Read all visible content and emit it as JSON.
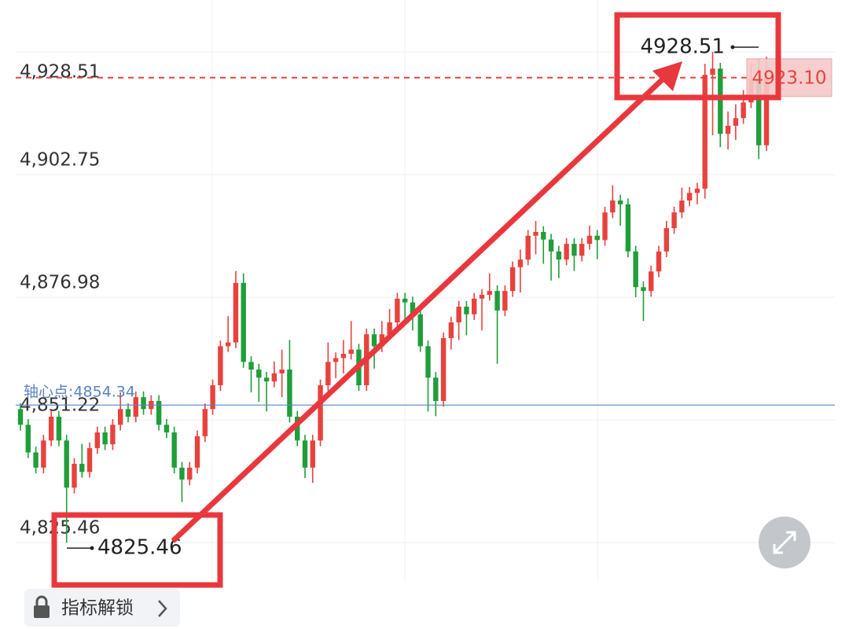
{
  "chart_data": {
    "type": "candlestick",
    "ylim": [
      4817.22,
      4939.41
    ],
    "yticks": [
      {
        "value": 4928.51,
        "label": "4,928.51"
      },
      {
        "value": 4902.75,
        "label": "4,902.75"
      },
      {
        "value": 4876.98,
        "label": "4,876.98"
      },
      {
        "value": 4851.22,
        "label": "4,851.22"
      },
      {
        "value": 4825.46,
        "label": "4,825.46"
      }
    ],
    "grid": true,
    "up_color": "#e8423e",
    "down_color": "#1f9e3a",
    "pivot": {
      "value": 4854.34,
      "label": "轴心点:4854.34",
      "color": "#5b82c2"
    },
    "current_price": {
      "value": 4923.1,
      "label": "4923.10",
      "color": "#e8423e"
    },
    "annotations": [
      {
        "value": 4928.51,
        "label": "4928.51"
      },
      {
        "value": 4825.46,
        "label": "4825.46"
      }
    ],
    "button": "指标解锁",
    "open": [
      4853.5,
      4850.2,
      4844.4,
      4841.2,
      4846.9,
      4851.9,
      4846.9,
      4837.0,
      4842.0,
      4840.3,
      4845.3,
      4848.6,
      4846.1,
      4850.2,
      4853.5,
      4851.9,
      4856.0,
      4853.5,
      4855.2,
      4850.2,
      4848.6,
      4841.2,
      4838.7,
      4841.2,
      4847.8,
      4853.5,
      4858.5,
      4866.7,
      4867.5,
      4880.0,
      4863.4,
      4861.8,
      4860.1,
      4859.3,
      4861.0,
      4861.8,
      4851.9,
      4846.9,
      4841.2,
      4846.9,
      4858.5,
      4863.4,
      4864.2,
      4865.1,
      4866.0,
      4858.5,
      4869.2,
      4866.7,
      4869.2,
      4871.7,
      4876.7,
      4875.9,
      4873.4,
      4866.7,
      4860.1,
      4855.2,
      4868.4,
      4871.7,
      4875.0,
      4873.4,
      4876.7,
      4877.5,
      4878.3,
      4874.2,
      4878.3,
      4883.3,
      4884.9,
      4889.9,
      4890.7,
      4889.1,
      4886.6,
      4884.9,
      4888.2,
      4885.7,
      4888.2,
      4889.9,
      4889.0,
      4894.8,
      4897.3,
      4896.5,
      4886.6,
      4879.1,
      4878.3,
      4882.4,
      4886.6,
      4891.5,
      4894.8,
      4897.3,
      4898.9,
      4899.8,
      4923.7,
      4925.0,
      4911.3,
      4913.0,
      4914.6,
      4917.9,
      4922.9,
      4908.9
    ],
    "high": [
      4854.7,
      4851.4,
      4845.6,
      4848.1,
      4853.1,
      4853.1,
      4848.1,
      4843.2,
      4846.2,
      4846.5,
      4849.8,
      4849.8,
      4851.4,
      4857.0,
      4854.7,
      4857.2,
      4857.2,
      4856.4,
      4856.4,
      4851.4,
      4849.8,
      4842.4,
      4842.4,
      4849.0,
      4854.7,
      4859.7,
      4867.9,
      4873.0,
      4882.5,
      4882.0,
      4864.6,
      4863.0,
      4861.3,
      4863.5,
      4866.0,
      4868.0,
      4853.1,
      4848.1,
      4848.1,
      4859.7,
      4867.5,
      4865.4,
      4868.0,
      4872.0,
      4867.2,
      4870.4,
      4870.4,
      4872.0,
      4874.5,
      4877.9,
      4877.9,
      4877.1,
      4874.6,
      4867.9,
      4861.3,
      4869.6,
      4872.9,
      4876.2,
      4876.2,
      4877.9,
      4878.7,
      4882.0,
      4879.5,
      4879.5,
      4884.5,
      4887.0,
      4891.1,
      4893.0,
      4891.9,
      4890.3,
      4887.8,
      4889.4,
      4889.4,
      4889.4,
      4892.0,
      4891.1,
      4896.0,
      4900.5,
      4898.5,
      4897.7,
      4887.8,
      4880.3,
      4883.6,
      4887.8,
      4893.0,
      4896.0,
      4900.0,
      4900.1,
      4901.0,
      4926.0,
      4928.51,
      4926.2,
      4916.0,
      4917.5,
      4920.5,
      4926.0,
      4927.0,
      4927.5
    ],
    "low": [
      4849.0,
      4843.2,
      4840.0,
      4840.0,
      4845.7,
      4845.7,
      4825.46,
      4835.8,
      4839.1,
      4839.1,
      4844.1,
      4844.9,
      4844.9,
      4849.0,
      4850.7,
      4850.7,
      4852.3,
      4852.3,
      4849.0,
      4847.4,
      4840.0,
      4834.0,
      4837.5,
      4840.0,
      4846.6,
      4852.3,
      4857.3,
      4865.5,
      4866.3,
      4862.2,
      4857.0,
      4855.0,
      4853.0,
      4858.1,
      4856.0,
      4850.7,
      4845.7,
      4839.0,
      4838.0,
      4845.7,
      4857.3,
      4860.0,
      4861.0,
      4863.9,
      4857.3,
      4857.3,
      4862.0,
      4865.5,
      4868.0,
      4870.5,
      4872.0,
      4870.0,
      4865.5,
      4853.0,
      4852.0,
      4854.0,
      4866.0,
      4868.0,
      4869.0,
      4872.2,
      4870.0,
      4876.3,
      4863.0,
      4873.0,
      4877.1,
      4878.0,
      4883.7,
      4886.0,
      4884.0,
      4880.5,
      4881.0,
      4883.7,
      4882.5,
      4884.5,
      4887.0,
      4885.0,
      4887.8,
      4893.6,
      4892.0,
      4885.4,
      4877.0,
      4872.0,
      4877.1,
      4881.2,
      4885.4,
      4890.3,
      4893.6,
      4896.1,
      4896.5,
      4897.7,
      4911.0,
      4908.5,
      4908.0,
      4910.0,
      4913.4,
      4916.7,
      4906.0,
      4907.7
    ],
    "close": [
      4850.2,
      4844.4,
      4841.2,
      4846.9,
      4851.9,
      4846.9,
      4837.0,
      4842.0,
      4840.3,
      4845.3,
      4848.6,
      4846.1,
      4850.2,
      4853.5,
      4851.9,
      4856.0,
      4853.5,
      4855.2,
      4850.2,
      4848.6,
      4841.2,
      4838.7,
      4841.2,
      4847.8,
      4853.5,
      4858.5,
      4866.7,
      4867.5,
      4880.0,
      4863.4,
      4861.8,
      4860.1,
      4859.3,
      4861.0,
      4861.8,
      4851.9,
      4846.9,
      4841.2,
      4846.9,
      4858.5,
      4863.4,
      4864.2,
      4865.1,
      4866.0,
      4858.5,
      4869.2,
      4866.7,
      4869.2,
      4871.7,
      4876.7,
      4875.9,
      4873.4,
      4866.7,
      4860.1,
      4855.2,
      4868.4,
      4871.7,
      4875.0,
      4873.4,
      4876.7,
      4877.5,
      4878.3,
      4874.2,
      4878.3,
      4883.3,
      4884.9,
      4889.9,
      4890.7,
      4889.1,
      4886.6,
      4884.9,
      4888.2,
      4885.7,
      4888.2,
      4889.9,
      4889.0,
      4894.8,
      4897.3,
      4896.5,
      4886.6,
      4879.1,
      4878.3,
      4882.4,
      4886.6,
      4891.5,
      4894.8,
      4897.3,
      4898.9,
      4899.8,
      4923.7,
      4925.0,
      4911.3,
      4913.0,
      4914.6,
      4917.9,
      4922.9,
      4908.9,
      4923.1
    ]
  }
}
